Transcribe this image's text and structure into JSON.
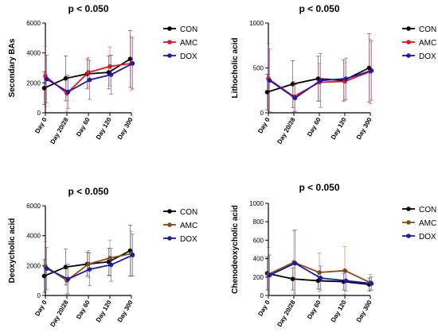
{
  "chart_data": [
    {
      "type": "line",
      "title": "p < 0.050",
      "ylabel": "Secondary BAs",
      "xlabel": "",
      "categories": [
        "Day 0",
        "Day 20/28",
        "Day 60",
        "Day 120",
        "Day 300"
      ],
      "ylim": [
        0,
        6000
      ],
      "yticks": [
        0,
        2000,
        4000,
        6000
      ],
      "ytick_labels": [
        "0",
        "2000",
        "4000",
        "6000"
      ],
      "legend_position": "right",
      "series": [
        {
          "name": "CON",
          "color": "#000000",
          "values": [
            1650,
            2300,
            2600,
            2700,
            3600
          ],
          "err": [
            1100,
            1500,
            1000,
            1100,
            1900
          ]
        },
        {
          "name": "AMC",
          "color": "#e8141b",
          "values": [
            2450,
            1300,
            2700,
            3100,
            3300
          ],
          "err": [
            2000,
            1200,
            1000,
            1300,
            1800
          ]
        },
        {
          "name": "DOX",
          "color": "#1a1aad",
          "values": [
            2250,
            1400,
            2200,
            2550,
            3300
          ],
          "err": [
            1600,
            1100,
            1300,
            1300,
            1700
          ]
        }
      ]
    },
    {
      "type": "line",
      "title": "p < 0.050",
      "ylabel": "Lithocholic acid",
      "xlabel": "",
      "categories": [
        "Day 0",
        "Day 20/28",
        "Day 60",
        "Day 120",
        "Day 300"
      ],
      "ylim": [
        0,
        1000
      ],
      "yticks": [
        0,
        500,
        1000
      ],
      "ytick_labels": [
        "0",
        "500",
        "1000"
      ],
      "legend_position": "right",
      "series": [
        {
          "name": "CON",
          "color": "#000000",
          "values": [
            230,
            320,
            380,
            360,
            500
          ],
          "err": [
            200,
            260,
            250,
            230,
            380
          ]
        },
        {
          "name": "AMC",
          "color": "#e8141b",
          "values": [
            380,
            180,
            340,
            350,
            460
          ],
          "err": [
            390,
            170,
            210,
            210,
            360
          ]
        },
        {
          "name": "DOX",
          "color": "#1a1aad",
          "values": [
            360,
            165,
            360,
            380,
            470
          ],
          "err": [
            350,
            150,
            300,
            230,
            330
          ]
        }
      ]
    },
    {
      "type": "line",
      "title": "p < 0.050",
      "ylabel": "Deoxycholic acid",
      "xlabel": "",
      "categories": [
        "Day 0",
        "Day 20/28",
        "Day 60",
        "Day 120",
        "Day 300"
      ],
      "ylim": [
        0,
        6000
      ],
      "yticks": [
        0,
        2000,
        4000,
        6000
      ],
      "ytick_labels": [
        "0",
        "2000",
        "4000",
        "6000"
      ],
      "legend_position": "right",
      "series": [
        {
          "name": "CON",
          "color": "#000000",
          "values": [
            1300,
            1900,
            2100,
            2250,
            3000
          ],
          "err": [
            1100,
            1200,
            800,
            900,
            1700
          ]
        },
        {
          "name": "AMC",
          "color": "#8b4a12",
          "values": [
            1950,
            1000,
            2100,
            2500,
            2800
          ],
          "err": [
            1650,
            900,
            900,
            1200,
            1500
          ]
        },
        {
          "name": "DOX",
          "color": "#1a1aad",
          "values": [
            1800,
            1100,
            1750,
            2050,
            2700
          ],
          "err": [
            1400,
            1000,
            1100,
            1100,
            1400
          ]
        }
      ]
    },
    {
      "type": "line",
      "title": "p < 0.050",
      "ylabel": "Chenodeoxycholic acid",
      "xlabel": "",
      "categories": [
        "Day 0",
        "Day 20/28",
        "Day 60",
        "Day 120",
        "Day 300"
      ],
      "ylim": [
        0,
        1000
      ],
      "yticks": [
        0,
        200,
        400,
        600,
        800,
        1000
      ],
      "ytick_labels": [
        "0",
        "200",
        "400",
        "600",
        "800",
        "1000"
      ],
      "legend_position": "right",
      "series": [
        {
          "name": "CON",
          "color": "#000000",
          "values": [
            240,
            180,
            160,
            150,
            120
          ],
          "err": [
            180,
            120,
            90,
            90,
            70
          ]
        },
        {
          "name": "AMC",
          "color": "#8b4a12",
          "values": [
            230,
            360,
            250,
            270,
            140
          ],
          "err": [
            290,
            340,
            210,
            260,
            90
          ]
        },
        {
          "name": "DOX",
          "color": "#1a1aad",
          "values": [
            220,
            350,
            190,
            160,
            130
          ],
          "err": [
            220,
            360,
            130,
            110,
            70
          ]
        }
      ]
    }
  ]
}
